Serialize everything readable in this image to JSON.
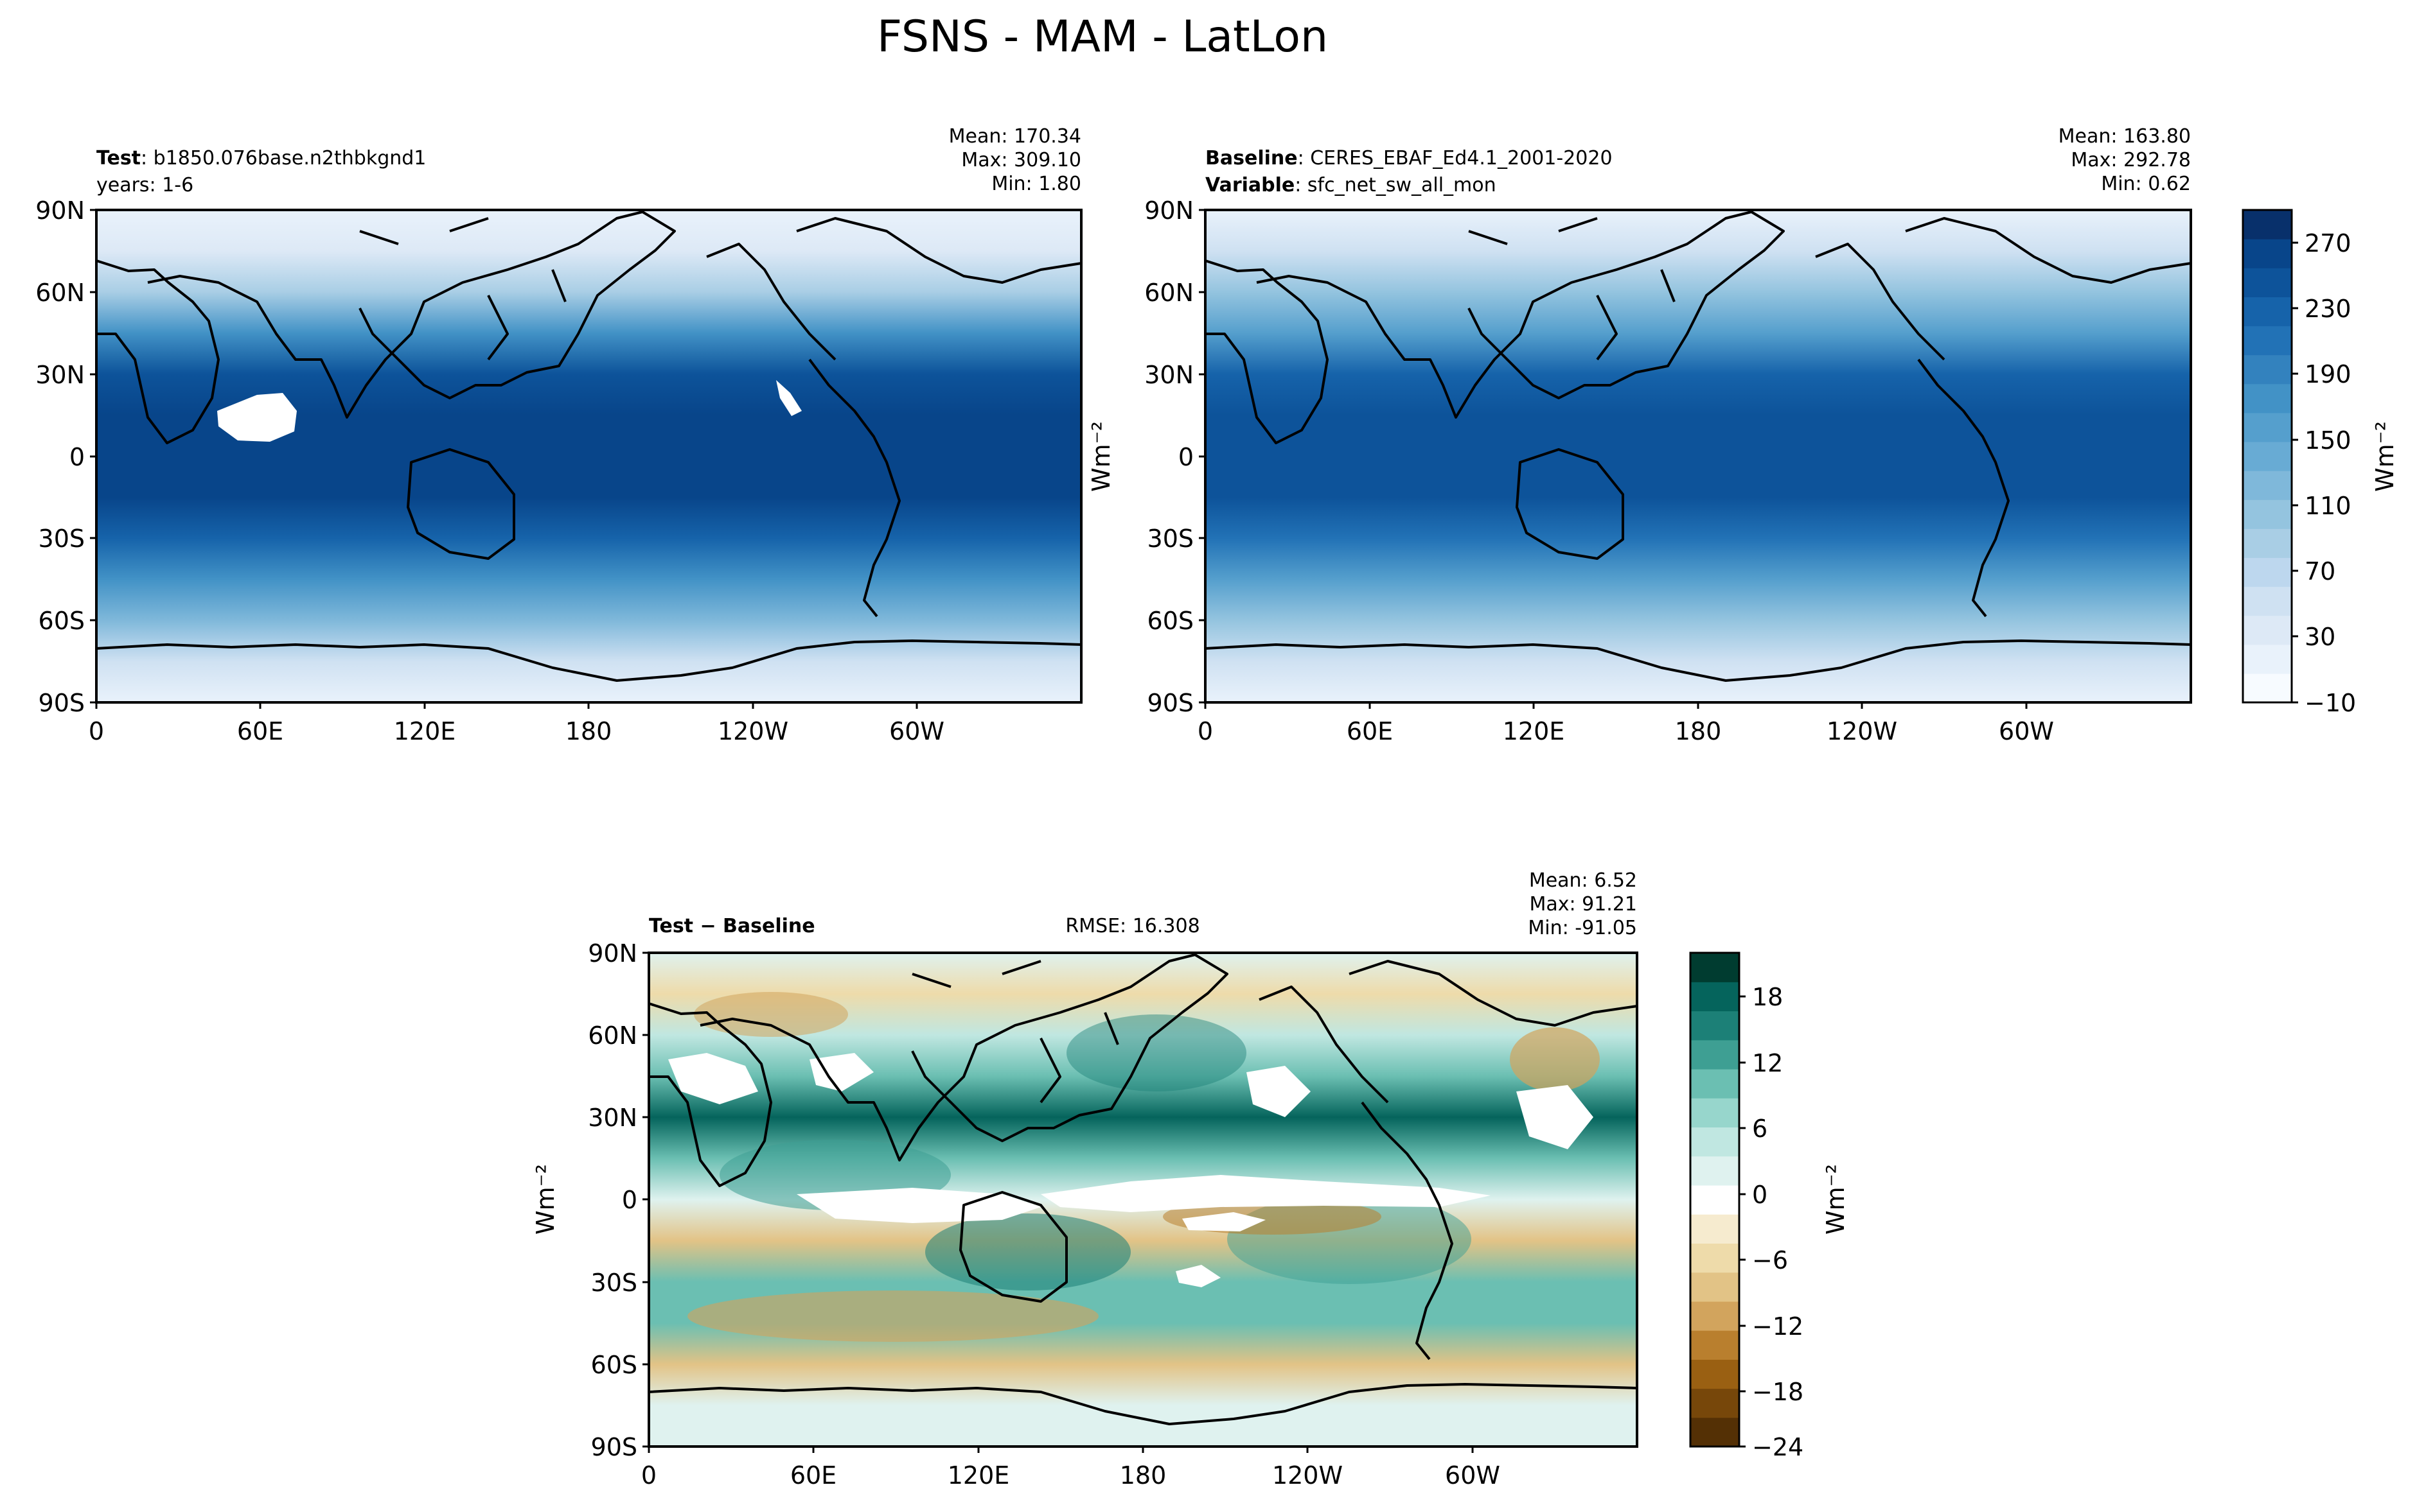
{
  "figure": {
    "title": "FSNS - MAM - LatLon"
  },
  "colors": {
    "ref_cmap": [
      "#f7fbff",
      "#e9f2fb",
      "#dde9f6",
      "#cfe1f2",
      "#bdd7ee",
      "#a9cee5",
      "#94c4df",
      "#7fb8da",
      "#68abd4",
      "#559fcd",
      "#4292c6",
      "#3382be",
      "#2272b6",
      "#1663aa",
      "#0d539a",
      "#08458a",
      "#08306b"
    ],
    "diff_cmap": [
      "#543005",
      "#77470a",
      "#9a6012",
      "#b97f2e",
      "#d2a45d",
      "#e2c386",
      "#eedbaa",
      "#f6ebcf",
      "#ffffff",
      "#dff2ef",
      "#c0e7e1",
      "#97d6cc",
      "#6bbfb2",
      "#3e9f93",
      "#1c8077",
      "#05645c",
      "#003c30"
    ]
  },
  "ticks": {
    "lon": [
      "0",
      "60E",
      "120E",
      "180",
      "120W",
      "60W"
    ],
    "lat": [
      "90N",
      "60N",
      "30N",
      "0",
      "30S",
      "60S",
      "90S"
    ]
  },
  "panels": {
    "test": {
      "label_bold": "Test",
      "label_rest": ": b1850.076base.n2thbkgnd1",
      "sub": "years: 1-6",
      "mean": "Mean: 170.34",
      "max": "Max: 309.10",
      "min": "Min:  1.80"
    },
    "ref": {
      "label_bold": "Baseline",
      "label_rest": ": CERES_EBAF_Ed4.1_2001-2020",
      "var_bold": "Variable",
      "var_rest": ": sfc_net_sw_all_mon",
      "mean": "Mean: 163.80",
      "max": "Max: 292.78",
      "min": "Min:  0.62",
      "colorbar_ticks": [
        "270",
        "230",
        "190",
        "150",
        "110",
        "70",
        "30",
        "−10"
      ],
      "units": "Wm⁻²"
    },
    "diff": {
      "label": "Test − Baseline",
      "rmse": "RMSE: 16.308",
      "mean": "Mean:  6.52",
      "max": "Max: 91.21",
      "min": "Min: -91.05",
      "colorbar_ticks": [
        "18",
        "12",
        "6",
        "0",
        "−6",
        "−12",
        "−18",
        "−24"
      ],
      "units": "Wm⁻²"
    }
  },
  "chart_data": [
    {
      "type": "heatmap",
      "panel": "Test",
      "field": "FSNS",
      "season": "MAM",
      "xlabels": [
        "0",
        "60E",
        "120E",
        "180",
        "120W",
        "60W"
      ],
      "ylabels": [
        "90N",
        "60N",
        "30N",
        "0",
        "30S",
        "60S",
        "90S"
      ],
      "lat_band_values": [
        15,
        40,
        95,
        175,
        240,
        262,
        268,
        255,
        225,
        175,
        120,
        55,
        15
      ],
      "lat_band_centers": [
        90,
        75,
        60,
        45,
        30,
        15,
        0,
        -15,
        -30,
        -45,
        -60,
        -75,
        -90
      ],
      "stats": {
        "mean": 170.34,
        "max": 309.1,
        "min": 1.8
      }
    },
    {
      "type": "heatmap",
      "panel": "Baseline",
      "field": "sfc_net_sw_all_mon",
      "xlabels": [
        "0",
        "60E",
        "120E",
        "180",
        "120W",
        "60W"
      ],
      "ylabels": [
        "90N",
        "60N",
        "30N",
        "0",
        "30S",
        "60S",
        "90S"
      ],
      "lat_band_values": [
        15,
        45,
        100,
        165,
        225,
        250,
        252,
        245,
        215,
        165,
        110,
        50,
        12
      ],
      "lat_band_centers": [
        90,
        75,
        60,
        45,
        30,
        15,
        0,
        -15,
        -30,
        -45,
        -60,
        -75,
        -90
      ],
      "colorbar": {
        "min": -10,
        "max": 290,
        "ticks": [
          -10,
          30,
          70,
          110,
          150,
          190,
          230,
          270
        ],
        "label": "Wm⁻²"
      },
      "stats": {
        "mean": 163.8,
        "max": 292.78,
        "min": 0.62
      }
    },
    {
      "type": "heatmap",
      "panel": "Test - Baseline",
      "xlabels": [
        "0",
        "60E",
        "120E",
        "180",
        "120W",
        "60W"
      ],
      "ylabels": [
        "90N",
        "60N",
        "30N",
        "0",
        "30S",
        "60S",
        "90S"
      ],
      "lat_band_values": [
        2,
        -8,
        5,
        10,
        16,
        8,
        0,
        -10,
        8,
        10,
        -10,
        0,
        2
      ],
      "lat_band_centers": [
        90,
        75,
        60,
        45,
        30,
        15,
        0,
        -15,
        -30,
        -45,
        -60,
        -75,
        -90
      ],
      "colorbar": {
        "min": -24,
        "max": 21,
        "ticks": [
          -24,
          -18,
          -12,
          -6,
          0,
          6,
          12,
          18
        ],
        "label": "Wm⁻²"
      },
      "stats": {
        "mean": 6.52,
        "max": 91.21,
        "min": -91.05,
        "rmse": 16.308
      }
    }
  ]
}
